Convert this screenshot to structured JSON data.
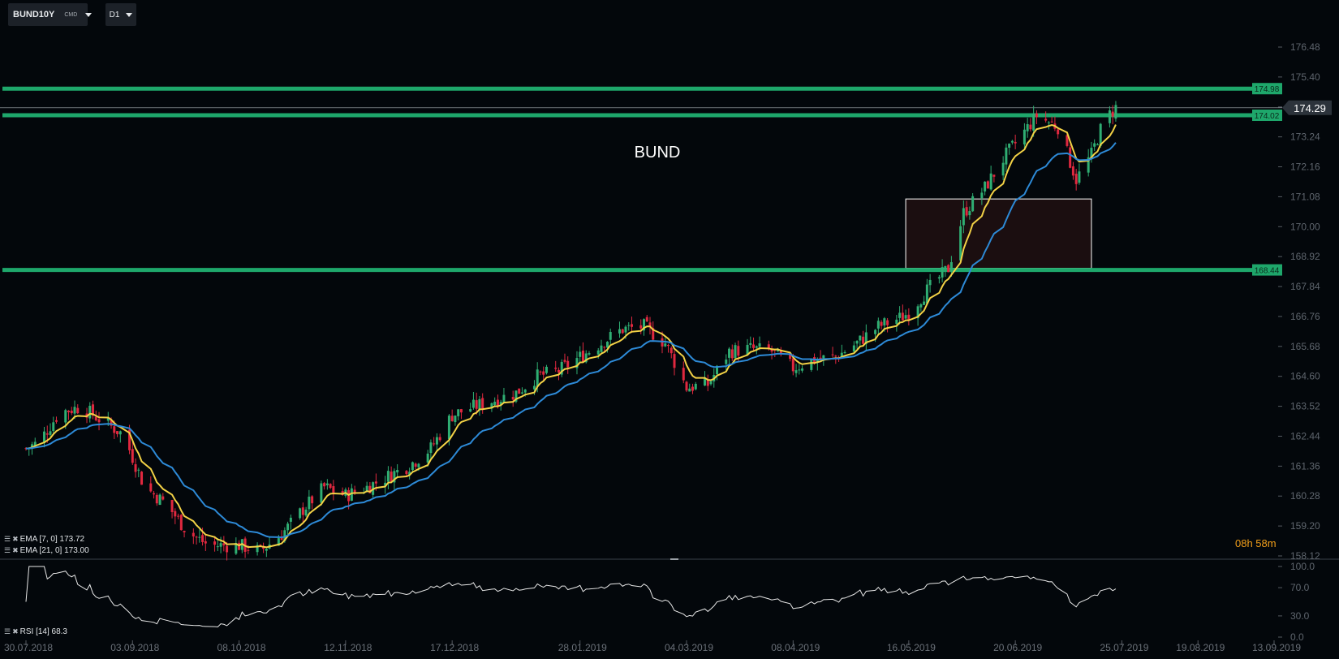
{
  "toolbar": {
    "symbol": "BUND10Y",
    "symbol_tag": "CMD",
    "timeframe": "D1"
  },
  "chart_title": "BUND",
  "countdown": "08h 58m",
  "legend": {
    "ema7": "EMA [7, 0] 173.72",
    "ema21": "EMA [21, 0] 173.00",
    "rsi": "RSI [14] 68.3"
  },
  "colors": {
    "background": "#03070b",
    "bull": "#2fae73",
    "bear": "#e0283f",
    "level_line": "#1ea76b",
    "ema7": "#f3d246",
    "ema21": "#2d8ad7",
    "rsi": "#e8e8e8",
    "countdown": "#f29f1a"
  },
  "chart_data": {
    "type": "candlestick",
    "y_ticks": [
      "176.48",
      "175.40",
      "174.32",
      "173.24",
      "172.16",
      "171.08",
      "170.00",
      "168.92",
      "167.84",
      "166.76",
      "165.68",
      "164.60",
      "163.52",
      "162.44",
      "161.36",
      "160.28",
      "159.20",
      "158.12"
    ],
    "y_range": [
      158.12,
      176.48
    ],
    "x_labels": [
      "30.07.2018",
      "03.09.2018",
      "08.10.2018",
      "12.11.2018",
      "17.12.2018",
      "28.01.2019",
      "04.03.2019",
      "08.04.2019",
      "16.05.2019",
      "20.06.2019",
      "25.07.2019",
      "19.08.2019",
      "13.09.2019"
    ],
    "levels": [
      {
        "label": "174.98",
        "value": 174.98
      },
      {
        "label": "174.02",
        "value": 174.02
      },
      {
        "label": "168.44",
        "value": 168.44
      }
    ],
    "last_price": {
      "label": "174.29",
      "value": 174.29
    },
    "zone": {
      "start": "15.05.2019",
      "end": "15.07.2019",
      "low": 168.5,
      "high": 171.0
    },
    "close_path": [
      [
        "30.07.2018",
        162.0
      ],
      [
        "03.08.2018",
        162.2
      ],
      [
        "10.08.2018",
        163.3
      ],
      [
        "17.08.2018",
        163.5
      ],
      [
        "24.08.2018",
        163.0
      ],
      [
        "31.08.2018",
        162.5
      ],
      [
        "07.09.2018",
        160.6
      ],
      [
        "14.09.2018",
        160.0
      ],
      [
        "21.09.2018",
        159.0
      ],
      [
        "28.09.2018",
        158.5
      ],
      [
        "08.10.2018",
        158.5
      ],
      [
        "15.10.2018",
        158.3
      ],
      [
        "22.10.2018",
        158.9
      ],
      [
        "29.10.2018",
        159.8
      ],
      [
        "05.11.2018",
        160.6
      ],
      [
        "12.11.2018",
        160.3
      ],
      [
        "19.11.2018",
        160.6
      ],
      [
        "26.11.2018",
        161.0
      ],
      [
        "03.12.2018",
        161.4
      ],
      [
        "10.12.2018",
        162.0
      ],
      [
        "17.12.2018",
        163.2
      ],
      [
        "24.12.2018",
        163.5
      ],
      [
        "07.01.2019",
        164.0
      ],
      [
        "14.01.2019",
        164.6
      ],
      [
        "21.01.2019",
        164.8
      ],
      [
        "28.01.2019",
        165.3
      ],
      [
        "04.02.2019",
        165.8
      ],
      [
        "11.02.2019",
        166.3
      ],
      [
        "18.02.2019",
        166.4
      ],
      [
        "25.02.2019",
        165.8
      ],
      [
        "04.03.2019",
        164.2
      ],
      [
        "11.03.2019",
        164.3
      ],
      [
        "18.03.2019",
        165.5
      ],
      [
        "25.03.2019",
        165.6
      ],
      [
        "01.04.2019",
        165.5
      ],
      [
        "08.04.2019",
        164.9
      ],
      [
        "15.04.2019",
        165.2
      ],
      [
        "22.04.2019",
        165.3
      ],
      [
        "29.04.2019",
        165.8
      ],
      [
        "06.05.2019",
        166.4
      ],
      [
        "13.05.2019",
        166.7
      ],
      [
        "16.05.2019",
        166.9
      ],
      [
        "22.05.2019",
        167.7
      ],
      [
        "29.05.2019",
        168.5
      ],
      [
        "03.06.2019",
        170.5
      ],
      [
        "10.06.2019",
        171.4
      ],
      [
        "17.06.2019",
        172.6
      ],
      [
        "20.06.2019",
        173.0
      ],
      [
        "27.06.2019",
        174.0
      ],
      [
        "04.07.2019",
        173.6
      ],
      [
        "10.07.2019",
        171.7
      ],
      [
        "15.07.2019",
        172.6
      ],
      [
        "19.07.2019",
        173.8
      ],
      [
        "23.07.2019",
        174.3
      ]
    ],
    "rsi": {
      "y_ticks": [
        "100.0",
        "70.0",
        "30.0",
        "0.0"
      ],
      "y_range": [
        0,
        100
      ],
      "value": 68.3
    }
  }
}
